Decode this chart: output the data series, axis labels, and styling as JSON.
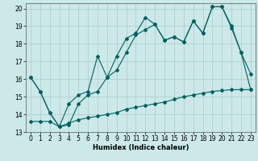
{
  "title": "",
  "xlabel": "Humidex (Indice chaleur)",
  "bg_color": "#cce8e8",
  "grid_color": "#aacccc",
  "line_color": "#006060",
  "xlim": [
    -0.5,
    23.5
  ],
  "ylim": [
    13,
    20.3
  ],
  "xticks": [
    0,
    1,
    2,
    3,
    4,
    5,
    6,
    7,
    8,
    9,
    10,
    11,
    12,
    13,
    14,
    15,
    16,
    17,
    18,
    19,
    20,
    21,
    22,
    23
  ],
  "yticks": [
    13,
    14,
    15,
    16,
    17,
    18,
    19,
    20
  ],
  "line1_x": [
    0,
    1,
    2,
    3,
    4,
    5,
    6,
    7,
    8,
    9,
    10,
    11,
    12,
    13,
    14,
    15,
    16,
    17,
    18,
    19,
    20,
    21,
    22,
    23
  ],
  "line1_y": [
    16.1,
    15.3,
    14.1,
    13.3,
    14.6,
    15.1,
    15.3,
    17.3,
    16.1,
    17.3,
    18.3,
    18.6,
    19.5,
    19.1,
    18.2,
    18.4,
    18.1,
    19.3,
    18.6,
    20.1,
    20.1,
    19.0,
    17.5,
    16.3
  ],
  "line2_x": [
    0,
    1,
    2,
    3,
    4,
    5,
    6,
    7,
    8,
    9,
    10,
    11,
    12,
    13,
    14,
    15,
    16,
    17,
    18,
    19,
    20,
    21,
    22,
    23
  ],
  "line2_y": [
    16.1,
    15.3,
    14.1,
    13.3,
    13.4,
    14.6,
    15.1,
    15.3,
    16.1,
    16.5,
    17.5,
    18.5,
    18.8,
    19.1,
    18.2,
    18.4,
    18.1,
    19.3,
    18.6,
    20.1,
    20.1,
    18.9,
    17.5,
    15.4
  ],
  "line3_x": [
    0,
    1,
    2,
    3,
    4,
    5,
    6,
    7,
    8,
    9,
    10,
    11,
    12,
    13,
    14,
    15,
    16,
    17,
    18,
    19,
    20,
    21,
    22,
    23
  ],
  "line3_y": [
    13.6,
    13.6,
    13.6,
    13.3,
    13.5,
    13.7,
    13.8,
    13.9,
    14.0,
    14.1,
    14.3,
    14.4,
    14.5,
    14.6,
    14.7,
    14.85,
    15.0,
    15.1,
    15.2,
    15.3,
    15.35,
    15.4,
    15.4,
    15.4
  ],
  "markersize": 2.0,
  "linewidth": 0.8,
  "tick_labelsize": 5.5,
  "xlabel_fontsize": 6.0
}
